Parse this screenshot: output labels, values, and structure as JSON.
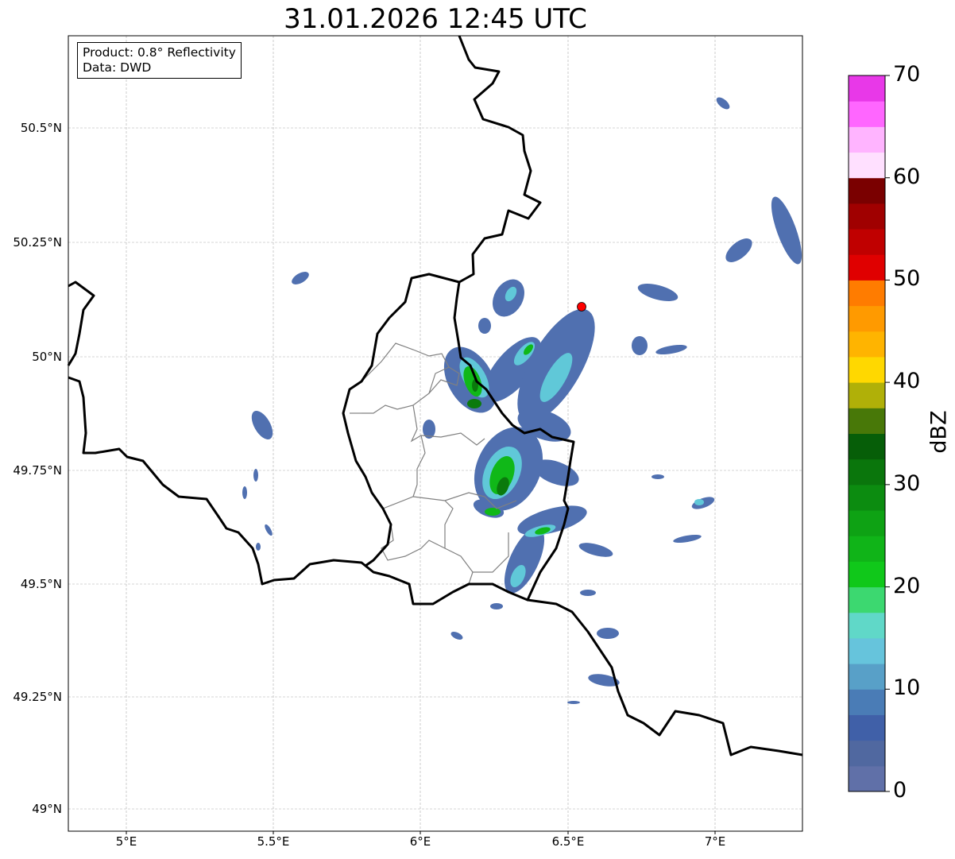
{
  "title": "31.01.2026 12:45 UTC",
  "info": {
    "product": "Product: 0.8° Reflectivity",
    "data": "Data: DWD"
  },
  "lon_ticks": [
    "5°E",
    "5.5°E",
    "6°E",
    "6.5°E",
    "7°E"
  ],
  "lat_ticks": [
    "50.5°N",
    "50.25°N",
    "50°N",
    "49.75°N",
    "49.5°N",
    "49.25°N",
    "49°N"
  ],
  "colorbar": {
    "label": "dBZ",
    "ticks": [
      "0",
      "10",
      "20",
      "30",
      "40",
      "50",
      "60",
      "70"
    ],
    "range": [
      0,
      70
    ],
    "step": 2.5,
    "colors": [
      "#6070a8",
      "#5068a0",
      "#4060a8",
      "#4a7cb6",
      "#58a0c8",
      "#66c4dc",
      "#60d8c8",
      "#3cd870",
      "#10c81a",
      "#10b418",
      "#0ea214",
      "#0c8c10",
      "#0a760c",
      "#065e08",
      "#487808",
      "#b0b008",
      "#ffd800",
      "#ffb400",
      "#ff9a00",
      "#ff7c00",
      "#e00000",
      "#c00000",
      "#a00000",
      "#7a0000",
      "#ffe0ff",
      "#ffb4ff",
      "#ff66ff",
      "#e838e8"
    ]
  },
  "marker": {
    "color": "#ff0000"
  }
}
